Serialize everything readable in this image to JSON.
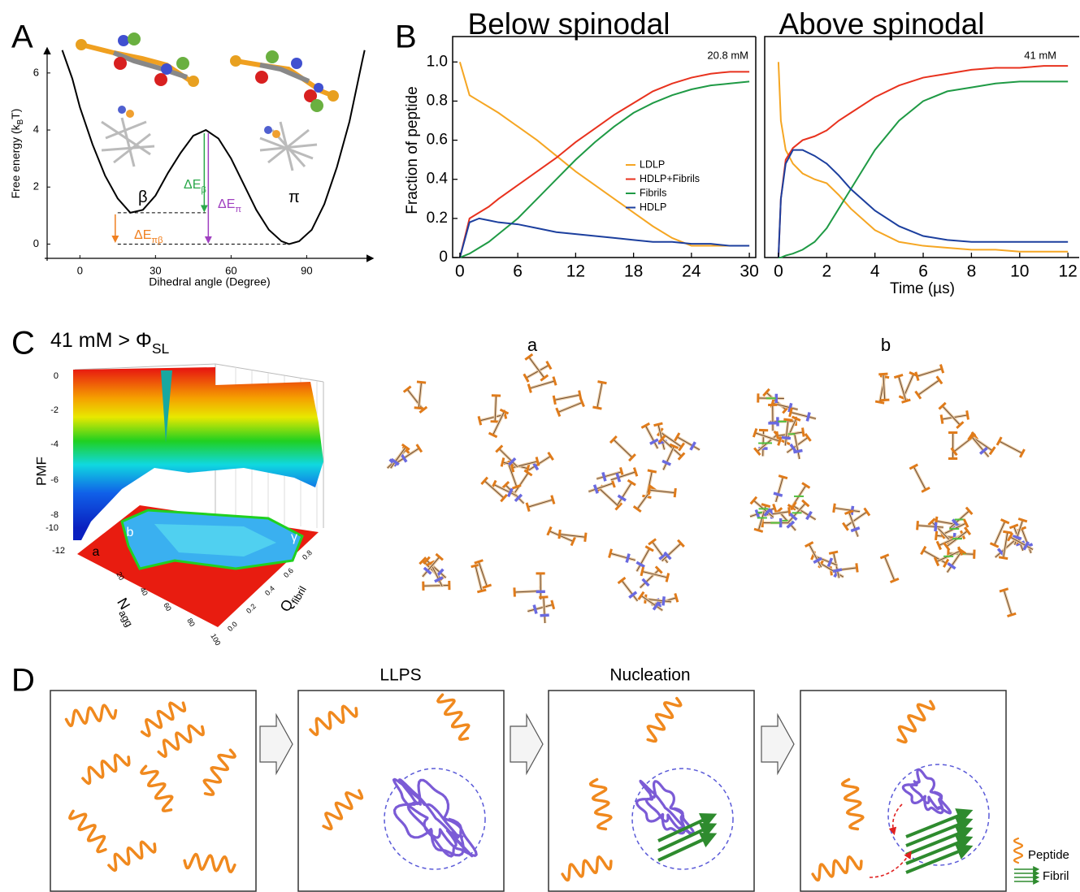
{
  "panel_labels": [
    "A",
    "B",
    "C",
    "D"
  ],
  "chart_data": [
    {
      "type": "line",
      "x_label": "Dihedral angle (Degree)",
      "y_label": "Free energy (k",
      "y_label_sub": "B",
      "y_label_end": "T)",
      "x": [
        -7,
        -3,
        0,
        5,
        10,
        15,
        20,
        25,
        30,
        35,
        40,
        45,
        50,
        55,
        60,
        65,
        70,
        75,
        80,
        83,
        87,
        92,
        97,
        102,
        107,
        112,
        113
      ],
      "values": [
        6.8,
        5.8,
        4.8,
        3.5,
        2.4,
        1.6,
        1.1,
        1.2,
        1.7,
        2.5,
        3.2,
        3.8,
        4.0,
        3.7,
        3.0,
        2.1,
        1.2,
        0.5,
        0.1,
        0,
        0.1,
        0.5,
        1.4,
        2.7,
        4.3,
        6.4,
        6.8
      ],
      "color": "#000000",
      "xlim": [
        -13,
        116
      ],
      "ylim": [
        -0.5,
        6.85
      ],
      "xticks": [
        0,
        30,
        60,
        90
      ],
      "yticks": [
        0,
        2,
        4,
        6
      ],
      "annotations": [
        {
          "text": "β",
          "color": "#000000"
        },
        {
          "text": "π",
          "color": "#000000"
        },
        {
          "text": "ΔE",
          "sub": "β",
          "color": "#2aa84a"
        },
        {
          "text": "ΔE",
          "sub": "π",
          "color": "#a040c0"
        },
        {
          "text": "ΔE",
          "sub": "πβ",
          "color": "#f08020"
        }
      ]
    },
    {
      "type": "line",
      "title": "Below spinodal",
      "y_label": "Fraction of peptide",
      "annotation": "20.8 mM",
      "x": [
        0,
        1,
        2,
        3,
        4,
        6,
        8,
        10,
        12,
        14,
        16,
        18,
        20,
        22,
        24,
        26,
        28,
        30
      ],
      "series": [
        {
          "name": "LDLP",
          "color": "#f5a623",
          "values": [
            1.0,
            0.83,
            0.8,
            0.77,
            0.74,
            0.67,
            0.6,
            0.52,
            0.44,
            0.37,
            0.3,
            0.23,
            0.16,
            0.1,
            0.06,
            0.06,
            0.06,
            0.06
          ]
        },
        {
          "name": "HDLP+Fibrils",
          "color": "#e8321e",
          "values": [
            0,
            0.2,
            0.23,
            0.26,
            0.3,
            0.37,
            0.44,
            0.51,
            0.59,
            0.66,
            0.73,
            0.79,
            0.85,
            0.89,
            0.92,
            0.94,
            0.95,
            0.95
          ]
        },
        {
          "name": "Fibrils",
          "color": "#1f9a45",
          "values": [
            0,
            0.02,
            0.05,
            0.08,
            0.12,
            0.2,
            0.3,
            0.4,
            0.5,
            0.59,
            0.67,
            0.74,
            0.79,
            0.83,
            0.86,
            0.88,
            0.89,
            0.9
          ]
        },
        {
          "name": "HDLP",
          "color": "#1c3f9e",
          "values": [
            0,
            0.18,
            0.2,
            0.19,
            0.18,
            0.17,
            0.15,
            0.13,
            0.12,
            0.11,
            0.1,
            0.09,
            0.08,
            0.08,
            0.07,
            0.07,
            0.06,
            0.06
          ]
        }
      ],
      "xlim": [
        -0.75,
        30.75
      ],
      "ylim": [
        0,
        1.13
      ],
      "xticks": [
        0,
        6,
        12,
        18,
        24,
        30
      ],
      "yticks": [
        0,
        0.2,
        0.4,
        0.6,
        0.8,
        {
          "value": 1,
          "label": "1.0"
        }
      ],
      "legend": "center-right"
    },
    {
      "type": "line",
      "title": "Above spinodal",
      "x_label": "Time (µs)",
      "annotation": "41 mM",
      "x": [
        0,
        0.1,
        0.3,
        0.6,
        1,
        1.5,
        2,
        2.5,
        3,
        4,
        5,
        6,
        7,
        8,
        9,
        10,
        11,
        12
      ],
      "series": [
        {
          "name": "LDLP",
          "color": "#f5a623",
          "values": [
            1.0,
            0.7,
            0.55,
            0.48,
            0.43,
            0.4,
            0.38,
            0.32,
            0.25,
            0.14,
            0.08,
            0.06,
            0.05,
            0.04,
            0.04,
            0.03,
            0.03,
            0.03
          ]
        },
        {
          "name": "HDLP+Fibrils",
          "color": "#e8321e",
          "values": [
            0,
            0.3,
            0.5,
            0.56,
            0.6,
            0.62,
            0.65,
            0.7,
            0.74,
            0.82,
            0.88,
            0.92,
            0.94,
            0.96,
            0.97,
            0.97,
            0.98,
            0.98
          ]
        },
        {
          "name": "Fibrils",
          "color": "#1f9a45",
          "values": [
            0,
            0,
            0.01,
            0.02,
            0.04,
            0.08,
            0.15,
            0.25,
            0.35,
            0.55,
            0.7,
            0.8,
            0.85,
            0.87,
            0.89,
            0.9,
            0.9,
            0.9
          ]
        },
        {
          "name": "HDLP",
          "color": "#1c3f9e",
          "values": [
            0,
            0.3,
            0.48,
            0.55,
            0.55,
            0.52,
            0.48,
            0.42,
            0.35,
            0.24,
            0.16,
            0.11,
            0.09,
            0.08,
            0.08,
            0.08,
            0.08,
            0.08
          ]
        }
      ],
      "xlim": [
        -0.57,
        12.5
      ],
      "ylim": [
        0,
        1.13
      ],
      "xticks": [
        0,
        2,
        4,
        6,
        8,
        10,
        12
      ]
    }
  ],
  "panel_c": {
    "title": "41 mM > Φ",
    "title_sub": "SL",
    "z_label": "PMF",
    "z_ticks": [
      0,
      -2,
      -4,
      -6,
      -8,
      -10,
      -12
    ],
    "floor_labels": [
      "a",
      "b",
      "γ"
    ],
    "n_label": "N",
    "n_label_sub": "agg",
    "n_ticks": [
      "20",
      "40",
      "60",
      "80",
      "100"
    ],
    "q_label": "Q",
    "q_label_sub": "fibril",
    "q_ticks": [
      "0.0",
      "0.2",
      "0.4",
      "0.6",
      "0.8"
    ],
    "snapshot_labels": [
      "a",
      "b"
    ]
  },
  "panel_d": {
    "stage_labels": [
      "LLPS",
      "Nucleation"
    ],
    "legend": [
      "Peptide",
      "Fibril"
    ]
  }
}
